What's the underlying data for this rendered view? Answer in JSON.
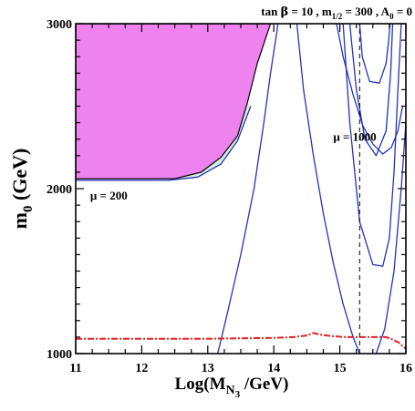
{
  "chart_data": {
    "type": "line",
    "title_parts": {
      "tan": "tan",
      "beta": "β",
      "eq1": " = 10 , m",
      "sub1": "1/2",
      "eq2": " = 300 , A",
      "sub2": "0",
      "eq3": " = 0"
    },
    "xlabel_parts": {
      "pre": "Log(M",
      "sub": "N",
      "subsub": "3",
      "post": " /GeV)"
    },
    "ylabel_parts": {
      "pre": "m",
      "sub": "0",
      "post": " (GeV)"
    },
    "xlim": [
      11,
      16
    ],
    "ylim": [
      1000,
      3000
    ],
    "x_ticks": [
      11,
      12,
      13,
      14,
      15,
      16
    ],
    "x_tick_labels": [
      "11",
      "12",
      "13",
      "14",
      "15",
      "16"
    ],
    "y_ticks": [
      1000,
      2000,
      3000
    ],
    "y_tick_labels": [
      "1000",
      "2000",
      "3000"
    ],
    "x_minor_step": 0.25,
    "y_minor_step": 100,
    "grid": false,
    "legend": "none",
    "colors": {
      "region_fill": "#ee82ee",
      "wedge_fill": "#d8f0e0",
      "mu_contour": "#2233bb",
      "bound_line": "#e62020",
      "edge_line": "#000000"
    },
    "annotations": [
      {
        "text": "μ = 200",
        "x": 11.22,
        "y": 1935
      },
      {
        "text": "μ = 1000",
        "x": 14.9,
        "y": 2290
      }
    ],
    "excluded_region": {
      "name": "",
      "x": [
        11.0,
        11.0,
        12.5,
        12.9,
        13.2,
        13.45,
        13.6,
        13.75,
        13.95,
        11.0
      ],
      "y": [
        3000,
        2060,
        2060,
        2100,
        2190,
        2320,
        2520,
        2760,
        3000,
        3000
      ]
    },
    "wedge_region": {
      "name": "",
      "x": [
        12.4,
        12.9,
        13.2,
        13.45,
        13.6,
        13.65,
        13.45,
        13.2,
        12.85,
        12.4
      ],
      "y": [
        2060,
        2100,
        2190,
        2320,
        2520,
        2500,
        2290,
        2150,
        2070,
        2050
      ]
    },
    "series": [
      {
        "name": "",
        "role": "mu_contour",
        "x": [
          11.0,
          12.4,
          12.85,
          13.2,
          13.45,
          13.65
        ],
        "y": [
          2050,
          2050,
          2070,
          2150,
          2290,
          2500
        ]
      },
      {
        "name": "",
        "role": "mu_contour",
        "x": [
          13.15,
          13.3,
          13.5,
          13.7,
          13.85,
          13.95,
          14.02,
          14.05,
          14.06
        ],
        "y": [
          1000,
          1250,
          1600,
          2000,
          2400,
          2700,
          2880,
          2960,
          3000
        ]
      },
      {
        "name": "",
        "role": "mu_contour",
        "x": [
          14.35,
          14.45,
          14.6,
          14.75,
          14.9,
          15.05,
          15.2,
          15.3
        ],
        "y": [
          3000,
          2600,
          2200,
          1850,
          1550,
          1300,
          1100,
          1000
        ]
      },
      {
        "name": "",
        "role": "mu_contour",
        "x": [
          14.95,
          15.05,
          15.2,
          15.35,
          15.5,
          15.65,
          15.78,
          15.88,
          15.95
        ],
        "y": [
          3000,
          2800,
          2570,
          2380,
          2270,
          2210,
          2250,
          2350,
          2500
        ]
      },
      {
        "name": "",
        "role": "mu_contour",
        "x": [
          15.15,
          15.25,
          15.38,
          15.55,
          15.7,
          15.77,
          15.8
        ],
        "y": [
          3000,
          2600,
          2300,
          2200,
          2350,
          2700,
          3000
        ]
      },
      {
        "name": "",
        "role": "mu_contour",
        "x": [
          15.3,
          15.34,
          15.45,
          15.6,
          15.7,
          15.74,
          15.76
        ],
        "y": [
          3000,
          2800,
          2650,
          2640,
          2760,
          2900,
          3000
        ]
      },
      {
        "name": "",
        "role": "mu_contour",
        "x": [
          15.05,
          15.15,
          15.3,
          15.5,
          15.65,
          15.75,
          15.82,
          15.88,
          15.93
        ],
        "y": [
          3000,
          2400,
          1800,
          1540,
          1530,
          1700,
          2100,
          2600,
          3000
        ]
      },
      {
        "name": "",
        "role": "mu_contour",
        "x": [
          15.55,
          15.68,
          15.82,
          15.93,
          16.0
        ],
        "y": [
          1000,
          1150,
          1500,
          2000,
          2400
        ]
      },
      {
        "name": "",
        "role": "bound_line",
        "x": [
          11.0,
          11.5,
          12.0,
          12.5,
          13.0,
          13.5,
          14.0,
          14.3,
          14.5,
          14.6,
          14.7,
          14.9,
          15.1,
          15.4,
          15.7,
          15.8,
          15.9,
          15.95,
          16.0
        ],
        "y": [
          1090,
          1090,
          1090,
          1090,
          1090,
          1093,
          1095,
          1100,
          1110,
          1125,
          1115,
          1105,
          1100,
          1100,
          1100,
          1085,
          1065,
          1045,
          1030
        ]
      },
      {
        "name": "",
        "role": "dashed_line",
        "x": [
          15.3,
          15.3
        ],
        "y": [
          1000,
          3000
        ]
      }
    ]
  }
}
